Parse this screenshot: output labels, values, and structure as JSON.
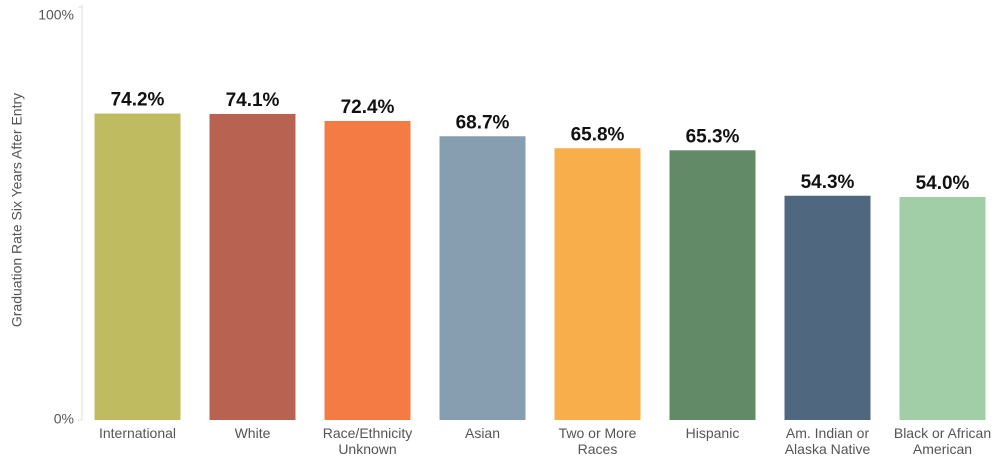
{
  "chart_data": {
    "type": "bar",
    "y_label": "Graduation Rate Six Years After Entry",
    "categories": [
      "International",
      "White",
      "Race/Ethnicity Unknown",
      "Asian",
      "Two or More Races",
      "Hispanic",
      "Am. Indian or Alaska Native",
      "Black or African American"
    ],
    "values": [
      74.2,
      74.1,
      72.4,
      68.7,
      65.8,
      65.3,
      54.3,
      54.0
    ],
    "value_labels": [
      "74.2%",
      "74.1%",
      "72.4%",
      "68.7%",
      "65.8%",
      "65.3%",
      "54.3%",
      "54.0%"
    ],
    "colors": [
      "#bfbb60",
      "#b86352",
      "#f47b44",
      "#879db0",
      "#f9ae4c",
      "#638a66",
      "#4f6880",
      "#a1cda7"
    ],
    "ylim": [
      0,
      100
    ],
    "yticks": [
      {
        "value": 0,
        "label": "0%"
      },
      {
        "value": 100,
        "label": "100%"
      }
    ]
  }
}
